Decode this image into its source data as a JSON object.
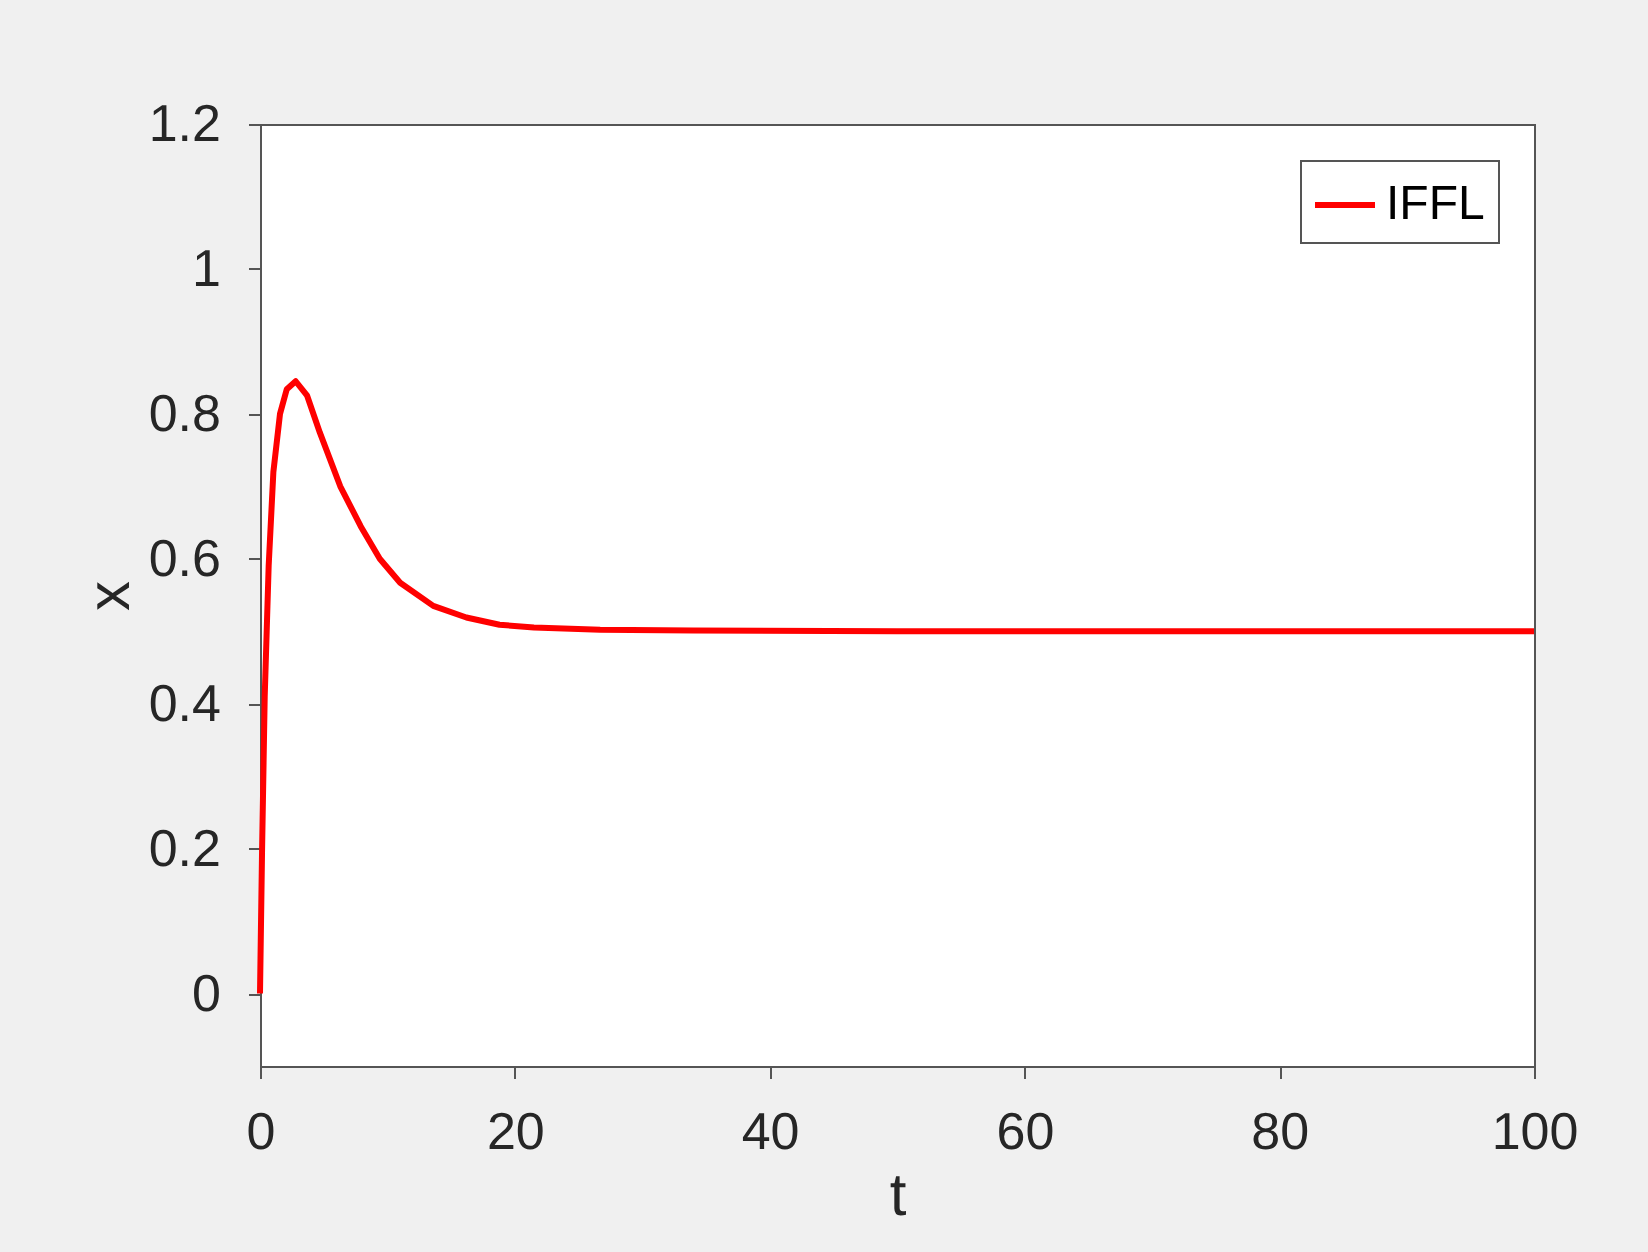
{
  "chart_data": {
    "type": "line",
    "xlabel": "t",
    "ylabel": "x",
    "xlim": [
      0,
      100
    ],
    "ylim": [
      -0.1,
      1.2
    ],
    "xticks": [
      0,
      20,
      40,
      60,
      80,
      100
    ],
    "yticks": [
      0,
      0.2,
      0.4,
      0.6,
      0.8,
      1,
      1.2
    ],
    "grid": false,
    "legend": "top right",
    "line_style": "solid",
    "marker": "none",
    "series": [
      {
        "name": "IFFL",
        "color": "#ff0000",
        "x": [
          0,
          0.16,
          0.37,
          0.68,
          1.05,
          1.57,
          2.1,
          2.8,
          3.7,
          4.7,
          6.3,
          7.9,
          9.4,
          11.0,
          13.6,
          16.2,
          18.8,
          21.5,
          26.7,
          34,
          50,
          100
        ],
        "values": [
          0,
          0.195,
          0.41,
          0.59,
          0.72,
          0.8,
          0.834,
          0.845,
          0.825,
          0.774,
          0.7,
          0.645,
          0.6,
          0.567,
          0.535,
          0.519,
          0.509,
          0.505,
          0.502,
          0.501,
          0.5,
          0.5
        ]
      }
    ]
  }
}
